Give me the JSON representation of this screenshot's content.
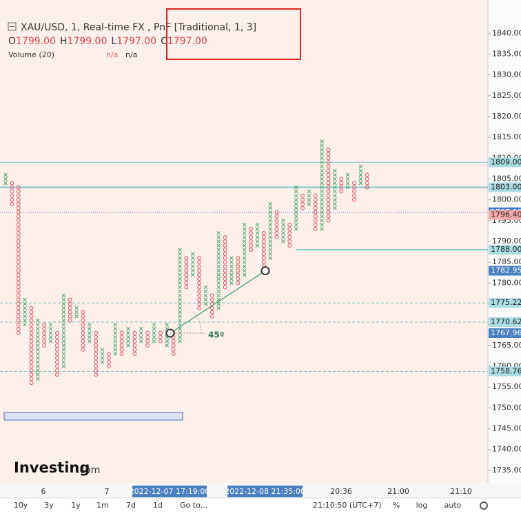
{
  "chart_data": {
    "type": "pnf",
    "title": "XAU/USD, 1, Real-time FX , PnF [Traditional, 1, 3]",
    "ohlc": [
      {
        "key": "O",
        "value": 1799,
        "label": "1799.00"
      },
      {
        "key": "H",
        "value": 1799,
        "label": "1799.00"
      },
      {
        "key": "L",
        "value": 1797,
        "label": "1797.00"
      },
      {
        "key": "C",
        "value": 1797,
        "label": "1797.00"
      }
    ],
    "indicator": "Volume (20)",
    "indicator_values": [
      "n/a",
      "n/a"
    ],
    "x_color": "#4fa86e",
    "o_color": "#e0606a",
    "columns": [
      {
        "kind": "X",
        "low": 1804,
        "high": 1806
      },
      {
        "kind": "O",
        "low": 1799,
        "high": 1804
      },
      {
        "kind": "O",
        "low": 1768,
        "high": 1803
      },
      {
        "kind": "X",
        "low": 1770,
        "high": 1776
      },
      {
        "kind": "O",
        "low": 1756,
        "high": 1774
      },
      {
        "kind": "X",
        "low": 1757,
        "high": 1771
      },
      {
        "kind": "O",
        "low": 1765,
        "high": 1770
      },
      {
        "kind": "X",
        "low": 1766,
        "high": 1770
      },
      {
        "kind": "O",
        "low": 1758,
        "high": 1768
      },
      {
        "kind": "X",
        "low": 1760,
        "high": 1777
      },
      {
        "kind": "O",
        "low": 1771,
        "high": 1776
      },
      {
        "kind": "X",
        "low": 1772,
        "high": 1774
      },
      {
        "kind": "O",
        "low": 1764,
        "high": 1773
      },
      {
        "kind": "X",
        "low": 1766,
        "high": 1770
      },
      {
        "kind": "O",
        "low": 1758,
        "high": 1768
      },
      {
        "kind": "X",
        "low": 1761,
        "high": 1764
      },
      {
        "kind": "O",
        "low": 1760,
        "high": 1763
      },
      {
        "kind": "X",
        "low": 1763,
        "high": 1770
      },
      {
        "kind": "O",
        "low": 1763,
        "high": 1768
      },
      {
        "kind": "X",
        "low": 1765,
        "high": 1769
      },
      {
        "kind": "O",
        "low": 1763,
        "high": 1768
      },
      {
        "kind": "X",
        "low": 1766,
        "high": 1769
      },
      {
        "kind": "O",
        "low": 1765,
        "high": 1768
      },
      {
        "kind": "X",
        "low": 1766,
        "high": 1770
      },
      {
        "kind": "O",
        "low": 1766,
        "high": 1768
      },
      {
        "kind": "X",
        "low": 1765,
        "high": 1770
      },
      {
        "kind": "O",
        "low": 1763,
        "high": 1768
      },
      {
        "kind": "X",
        "low": 1766,
        "high": 1788
      },
      {
        "kind": "O",
        "low": 1779,
        "high": 1786
      },
      {
        "kind": "X",
        "low": 1782,
        "high": 1787
      },
      {
        "kind": "O",
        "low": 1774,
        "high": 1786
      },
      {
        "kind": "X",
        "low": 1775,
        "high": 1779
      },
      {
        "kind": "O",
        "low": 1772,
        "high": 1777
      },
      {
        "kind": "X",
        "low": 1774,
        "high": 1792
      },
      {
        "kind": "O",
        "low": 1779,
        "high": 1791
      },
      {
        "kind": "X",
        "low": 1780,
        "high": 1786
      },
      {
        "kind": "O",
        "low": 1780,
        "high": 1786
      },
      {
        "kind": "X",
        "low": 1782,
        "high": 1794
      },
      {
        "kind": "O",
        "low": 1788,
        "high": 1793
      },
      {
        "kind": "X",
        "low": 1789,
        "high": 1794
      },
      {
        "kind": "O",
        "low": 1784,
        "high": 1792
      },
      {
        "kind": "X",
        "low": 1786,
        "high": 1799
      },
      {
        "kind": "O",
        "low": 1791,
        "high": 1797
      },
      {
        "kind": "X",
        "low": 1790,
        "high": 1795
      },
      {
        "kind": "O",
        "low": 1789,
        "high": 1794
      },
      {
        "kind": "X",
        "low": 1793,
        "high": 1803
      },
      {
        "kind": "O",
        "low": 1798,
        "high": 1801
      },
      {
        "kind": "X",
        "low": 1799,
        "high": 1802
      },
      {
        "kind": "O",
        "low": 1793,
        "high": 1801
      },
      {
        "kind": "X",
        "low": 1793,
        "high": 1814
      },
      {
        "kind": "O",
        "low": 1795,
        "high": 1812
      },
      {
        "kind": "X",
        "low": 1798,
        "high": 1807
      },
      {
        "kind": "O",
        "low": 1802,
        "high": 1805
      },
      {
        "kind": "X",
        "low": 1803,
        "high": 1806
      },
      {
        "kind": "O",
        "low": 1800,
        "high": 1804
      },
      {
        "kind": "X",
        "low": 1804,
        "high": 1808
      },
      {
        "kind": "O",
        "low": 1803,
        "high": 1806
      }
    ],
    "ylim": [
      1732,
      1848
    ],
    "yticks": [
      {
        "value": 1735,
        "label": "1735.00"
      },
      {
        "value": 1740,
        "label": "1740.00"
      },
      {
        "value": 1745,
        "label": "1745.00"
      },
      {
        "value": 1750,
        "label": "1750.00"
      },
      {
        "value": 1755,
        "label": "1755.00"
      },
      {
        "value": 1760,
        "label": "1760.00"
      },
      {
        "value": 1765,
        "label": "1765.00"
      },
      {
        "value": 1770,
        "label": "1770.00"
      },
      {
        "value": 1775,
        "label": "1775.00"
      },
      {
        "value": 1780,
        "label": "1780.00"
      },
      {
        "value": 1785,
        "label": "1785.00"
      },
      {
        "value": 1790,
        "label": "1790.00"
      },
      {
        "value": 1795,
        "label": "1795.00"
      },
      {
        "value": 1800,
        "label": "1800.00"
      },
      {
        "value": 1805,
        "label": "1805.00"
      },
      {
        "value": 1810,
        "label": "1810.00"
      },
      {
        "value": 1815,
        "label": "1815.00"
      },
      {
        "value": 1820,
        "label": "1820.00"
      },
      {
        "value": 1825,
        "label": "1825.00"
      },
      {
        "value": 1830,
        "label": "1830.00"
      },
      {
        "value": 1835,
        "label": "1835.00"
      },
      {
        "value": 1840,
        "label": "1840.00"
      }
    ],
    "levels": [
      {
        "value": 1809,
        "label": "1809.00",
        "style": "solid",
        "color": "#7fc6cf",
        "badge": "#a9dde3",
        "text_color": "#222"
      },
      {
        "value": 1803,
        "label": "1803.00",
        "style": "thick",
        "color": "#7fc6cf",
        "badge": "#a9dde3",
        "text_color": "#222"
      },
      {
        "value": 1797,
        "label": "1797.00",
        "style": "dotted",
        "color": "#3d5bd9",
        "badge": "#3d7bd9",
        "text_color": "#fff"
      },
      {
        "value": 1796.4,
        "label": "1796.40",
        "style": "none",
        "color": "#f4a9a9",
        "badge": "#f4a9a9",
        "text_color": "#222"
      },
      {
        "value": 1788,
        "label": "1788.00",
        "style": "thick-partial",
        "color": "#7fc6cf",
        "badge": "#a9dde3",
        "text_color": "#222"
      },
      {
        "value": 1775.22,
        "label": "1775.22",
        "style": "dashed",
        "color": "#6fbfca",
        "badge": "#a9dde3",
        "text_color": "#222"
      },
      {
        "value": 1770.62,
        "label": "1770.62",
        "style": "dashed",
        "color": "#6fbfca",
        "badge": "#a9dde3",
        "text_color": "#222"
      },
      {
        "value": 1758.76,
        "label": "1758.76",
        "style": "dashed",
        "color": "#6fbfca",
        "badge": "#a9dde3",
        "text_color": "#222"
      }
    ],
    "trendline": {
      "from": {
        "value": 1767.96,
        "label": "1767.96"
      },
      "to": {
        "value": 1782.95,
        "label": "1782.95"
      },
      "color": "#4a7fc0",
      "angle_label": "45º"
    },
    "x_labels": [
      "6",
      "7",
      "20:36",
      "21:00",
      "21:10"
    ],
    "cursor_labels": [
      "2022-12-07 17:19:00",
      "2022-12-08 21:35:00"
    ],
    "toolbar": {
      "ranges": [
        "10y",
        "3y",
        "1y",
        "1m",
        "7d",
        "1d"
      ],
      "goto": "Go to...",
      "clock": "21:10:50 (UTC+7)",
      "scale_buttons": [
        "%",
        "log",
        "auto"
      ]
    },
    "watermark": {
      "brand": "Investing",
      "suffix": ".com"
    }
  }
}
